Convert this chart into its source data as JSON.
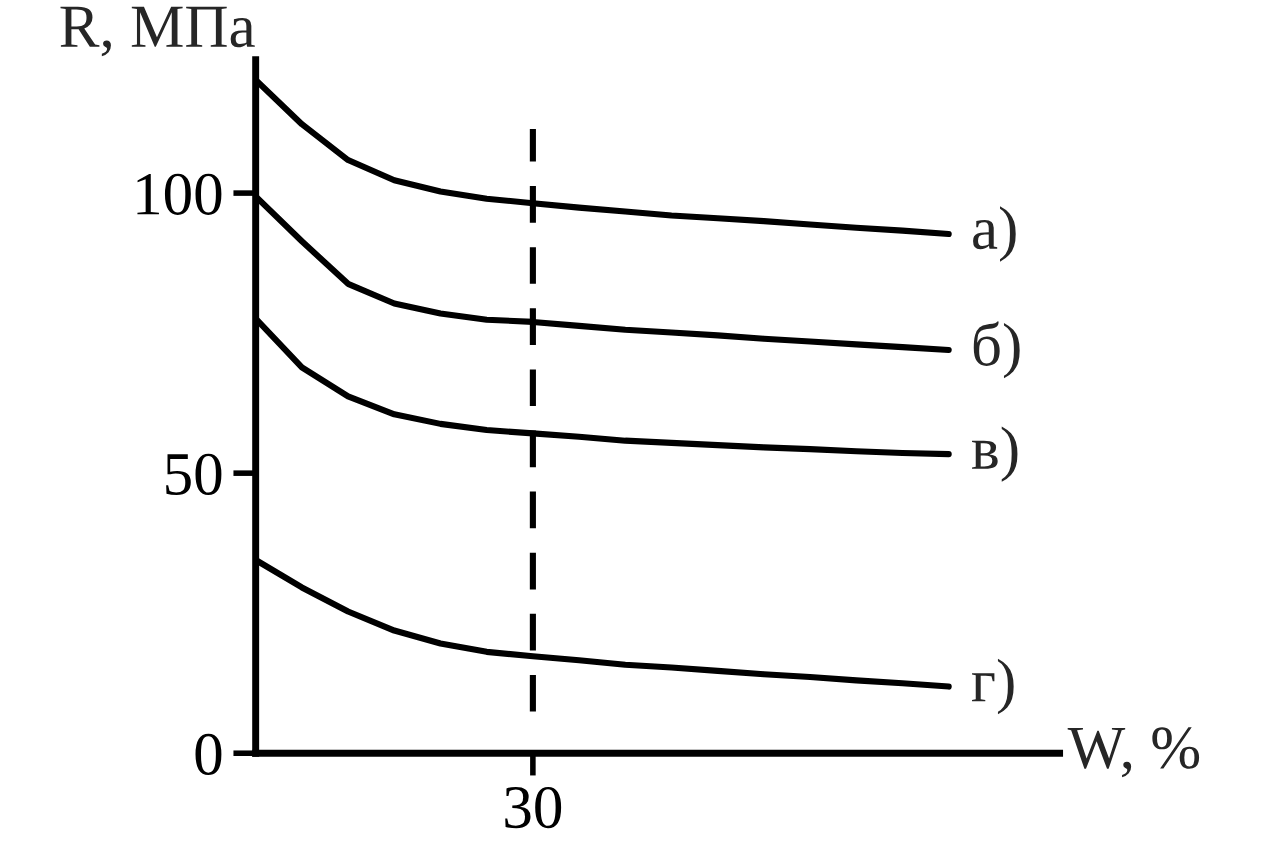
{
  "chart_data": {
    "type": "line",
    "xlabel": "W, %",
    "ylabel": "R, МПа",
    "categories": [
      null,
      null,
      null,
      null,
      null,
      null,
      "30",
      null,
      null,
      null,
      null,
      null,
      null,
      null,
      null,
      null,
      null,
      null
    ],
    "ylim": [
      0,
      123.8
    ],
    "yticks": [
      0,
      50,
      100
    ],
    "grid": false,
    "legend": false,
    "marker": "none",
    "ref_lines": [
      {
        "axis": "x",
        "value": "30",
        "color": "#000000",
        "line_style": "dashed"
      }
    ],
    "series": [
      {
        "name": "а)",
        "color": "#000000",
        "values": [
          120.2,
          112.3,
          105.9,
          102.3,
          100.3,
          99.0,
          98.2,
          97.4,
          96.7,
          96.0,
          95.5,
          95.0,
          94.4,
          93.8,
          93.3,
          92.7,
          null,
          null
        ]
      },
      {
        "name": "б)",
        "color": "#000000",
        "values": [
          99.4,
          91.4,
          83.8,
          80.3,
          78.5,
          77.4,
          77.0,
          76.3,
          75.6,
          75.1,
          74.6,
          74.0,
          73.5,
          73.0,
          72.5,
          72.0,
          null,
          null
        ]
      },
      {
        "name": "в)",
        "color": "#000000",
        "values": [
          77.6,
          68.9,
          63.7,
          60.5,
          58.8,
          57.7,
          57.1,
          56.5,
          55.8,
          55.4,
          55.0,
          54.6,
          54.3,
          53.9,
          53.6,
          53.4,
          null,
          null
        ]
      },
      {
        "name": "г)",
        "color": "#000000",
        "values": [
          34.5,
          29.6,
          25.3,
          21.9,
          19.6,
          18.1,
          17.3,
          16.6,
          15.8,
          15.3,
          14.7,
          14.1,
          13.6,
          13.0,
          12.5,
          11.9,
          null,
          null
        ]
      }
    ]
  }
}
